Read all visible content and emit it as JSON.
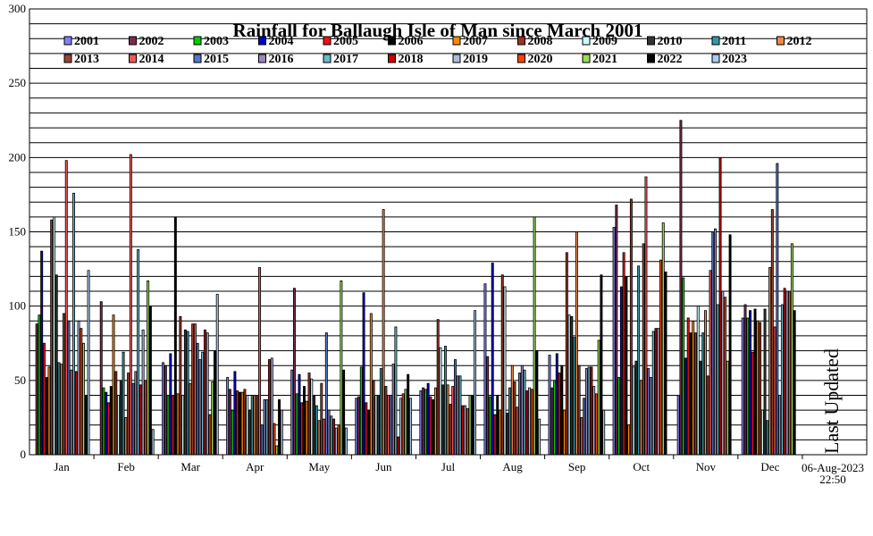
{
  "chart_data": {
    "type": "bar",
    "title": "Rainfall for Ballaugh Isle of Man since March 2001",
    "xlabel": "",
    "ylabel": "",
    "ylim": [
      0,
      300
    ],
    "yticks": [
      0,
      50,
      100,
      150,
      200,
      250,
      300
    ],
    "grid": true,
    "legend_position": "top",
    "categories": [
      "Jan",
      "Feb",
      "Mar",
      "Apr",
      "May",
      "Jun",
      "Jul",
      "Aug",
      "Sep",
      "Oct",
      "Nov",
      "Dec"
    ],
    "series": [
      {
        "name": "2001",
        "color": "#8080ff",
        "values": [
          null,
          null,
          62,
          52,
          57,
          38,
          43,
          115,
          67,
          153,
          40,
          92
        ]
      },
      {
        "name": "2002",
        "color": "#7b2b4f",
        "values": [
          88,
          103,
          60,
          44,
          112,
          39,
          45,
          66,
          45,
          168,
          225,
          101
        ]
      },
      {
        "name": "2003",
        "color": "#00cc00",
        "values": [
          94,
          45,
          40,
          30,
          41,
          59,
          44,
          39,
          50,
          52,
          119,
          92
        ]
      },
      {
        "name": "2004",
        "color": "#0000cc",
        "values": [
          137,
          42,
          68,
          56,
          54,
          109,
          48,
          129,
          68,
          113,
          65,
          97
        ]
      },
      {
        "name": "2005",
        "color": "#ee1111",
        "values": [
          75,
          35,
          40,
          43,
          35,
          35,
          39,
          27,
          55,
          136,
          92,
          69
        ]
      },
      {
        "name": "2006",
        "color": "#000000",
        "values": [
          52,
          46,
          160,
          42,
          46,
          30,
          37,
          40,
          60,
          120,
          82,
          98
        ]
      },
      {
        "name": "2007",
        "color": "#ff8800",
        "values": [
          59,
          94,
          41,
          42,
          36,
          95,
          45,
          30,
          30,
          20,
          90,
          90
        ]
      },
      {
        "name": "2008",
        "color": "#993322",
        "values": [
          158,
          56,
          93,
          44,
          55,
          50,
          91,
          121,
          136,
          172,
          82,
          89
        ]
      },
      {
        "name": "2009",
        "color": "#ccffff",
        "values": [
          160,
          40,
          40,
          40,
          51,
          40,
          72,
          113,
          94,
          59,
          100,
          30
        ]
      },
      {
        "name": "2010",
        "color": "#333333",
        "values": [
          121,
          50,
          84,
          30,
          40,
          40,
          47,
          28,
          93,
          63,
          63,
          98
        ]
      },
      {
        "name": "2011",
        "color": "#3399aa",
        "values": [
          62,
          69,
          83,
          40,
          33,
          58,
          73,
          45,
          79,
          127,
          82,
          23
        ]
      },
      {
        "name": "2012",
        "color": "#ee8844",
        "values": [
          61,
          25,
          48,
          40,
          23,
          165,
          47,
          60,
          150,
          50,
          97,
          126
        ]
      },
      {
        "name": "2013",
        "color": "#994433",
        "values": [
          95,
          55,
          88,
          40,
          48,
          46,
          34,
          49,
          60,
          142,
          53,
          165
        ]
      },
      {
        "name": "2014",
        "color": "#ff5555",
        "values": [
          198,
          202,
          88,
          126,
          24,
          40,
          46,
          32,
          25,
          187,
          124,
          86
        ]
      },
      {
        "name": "2015",
        "color": "#5577cc",
        "values": [
          90,
          48,
          75,
          20,
          82,
          40,
          64,
          55,
          38,
          58,
          150,
          196
        ]
      },
      {
        "name": "2016",
        "color": "#9988bb",
        "values": [
          57,
          56,
          64,
          37,
          30,
          61,
          53,
          60,
          58,
          52,
          152,
          40
        ]
      },
      {
        "name": "2017",
        "color": "#66bbcc",
        "values": [
          176,
          138,
          69,
          37,
          26,
          86,
          53,
          57,
          59,
          83,
          101,
          101
        ]
      },
      {
        "name": "2018",
        "color": "#cc0000",
        "values": [
          56,
          47,
          84,
          64,
          24,
          12,
          33,
          43,
          59,
          85,
          200,
          112
        ]
      },
      {
        "name": "2019",
        "color": "#aabbdd",
        "values": [
          90,
          84,
          82,
          65,
          18,
          38,
          33,
          45,
          46,
          85,
          110,
          110
        ]
      },
      {
        "name": "2020",
        "color": "#ff4400",
        "values": [
          85,
          50,
          27,
          21,
          20,
          41,
          31,
          44,
          41,
          131,
          106,
          110
        ]
      },
      {
        "name": "2021",
        "color": "#99dd55",
        "values": [
          75,
          117,
          49,
          6,
          117,
          44,
          40,
          160,
          77,
          156,
          63,
          142
        ]
      },
      {
        "name": "2022",
        "color": "#000000",
        "values": [
          40,
          100,
          70,
          37,
          57,
          54,
          40,
          70,
          121,
          123,
          148,
          97
        ]
      },
      {
        "name": "2023",
        "color": "#aaccee",
        "values": [
          124,
          17,
          108,
          30,
          18,
          38,
          97,
          24,
          30,
          0,
          0,
          0
        ]
      }
    ]
  },
  "footer": {
    "date": "06-Aug-2023",
    "time": "22:50",
    "last_updated": "Last Updated"
  }
}
